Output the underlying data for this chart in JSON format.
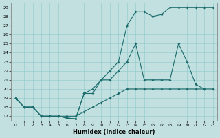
{
  "xlabel": "Humidex (Indice chaleur)",
  "xlim": [
    -0.5,
    23.5
  ],
  "ylim": [
    16.5,
    29.5
  ],
  "yticks": [
    17,
    18,
    19,
    20,
    21,
    22,
    23,
    24,
    25,
    26,
    27,
    28,
    29
  ],
  "xticks": [
    0,
    1,
    2,
    3,
    4,
    5,
    6,
    7,
    8,
    9,
    10,
    11,
    12,
    13,
    14,
    15,
    16,
    17,
    18,
    19,
    20,
    21,
    22,
    23
  ],
  "bg_color": "#c2e0e0",
  "grid_color": "#99cccc",
  "line_color": "#1a6b6b",
  "line1_x": [
    0,
    1,
    2,
    3,
    4,
    5,
    6,
    7,
    8,
    9,
    10,
    11,
    12,
    13,
    14,
    15,
    16,
    17,
    18,
    19,
    20,
    21,
    22,
    23
  ],
  "line1_y": [
    19,
    18,
    18,
    17,
    17,
    17,
    17,
    17,
    17.5,
    18,
    18.5,
    19,
    19.5,
    20,
    20,
    20,
    20,
    20,
    20,
    20,
    20,
    20,
    20,
    20
  ],
  "line2_x": [
    0,
    1,
    2,
    3,
    4,
    5,
    6,
    7,
    8,
    9,
    10,
    11,
    12,
    13,
    14,
    15,
    16,
    17,
    18,
    19,
    20,
    21,
    22
  ],
  "line2_y": [
    19,
    18,
    18,
    17,
    17,
    17,
    16.8,
    16.7,
    19.5,
    19.5,
    21,
    21,
    22,
    23,
    25,
    21,
    21,
    21,
    21,
    25,
    23,
    20.5,
    20
  ],
  "line3_x": [
    0,
    1,
    2,
    3,
    4,
    5,
    6,
    7,
    8,
    9,
    10,
    11,
    12,
    13,
    14,
    15,
    16,
    17,
    18,
    19,
    20,
    21,
    22,
    23
  ],
  "line3_y": [
    19,
    18,
    18,
    17,
    17,
    17,
    16.8,
    16.7,
    19.5,
    20,
    21,
    22,
    23,
    27,
    28.5,
    28.5,
    28,
    28.2,
    29,
    29,
    29,
    29,
    29,
    29
  ]
}
